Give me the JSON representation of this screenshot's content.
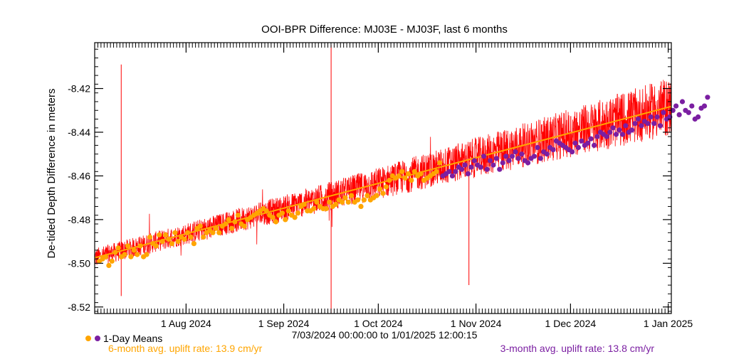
{
  "chart_data": {
    "type": "scatter",
    "title": "OOI-BPR Difference: MJ03E - MJ03F, last 6 months",
    "ylabel": "De-tided Depth Difference in meters",
    "xlabel": "",
    "x_range_label": "7/03/2024 00:00:00 to  1/01/2025 12:00:15",
    "xlim": [
      "2024-07-03",
      "2025-01-02"
    ],
    "ylim": [
      -8.523,
      -8.399
    ],
    "y_ticks": [
      -8.52,
      -8.5,
      -8.48,
      -8.46,
      -8.44,
      -8.42
    ],
    "y_tick_labels": [
      "-8.52",
      "-8.50",
      "-8.48",
      "-8.46",
      "-8.44",
      "-8.42"
    ],
    "x_ticks": [
      "2024-08-01",
      "2024-09-01",
      "2024-10-01",
      "2024-11-01",
      "2024-12-01",
      "2025-01-01"
    ],
    "x_tick_labels": [
      "1 Aug 2024",
      "1 Sep 2024",
      "1 Oct 2024",
      "1 Nov 2024",
      "1 Dec 2024",
      "1 Jan 2025"
    ],
    "grid": false,
    "legend": {
      "label": "1-Day Means",
      "placement": "bottom-left",
      "marker_colors": [
        "#ffa500",
        "#7b1fa2"
      ]
    },
    "colors": {
      "raw": "#ff0000",
      "six_month": "#ffa500",
      "three_month": "#7b1fa2",
      "fit_line": "#ffa500"
    },
    "annotations": {
      "six_month_rate": "6-month avg. uplift rate:  13.9 cm/yr",
      "three_month_rate": "3-month avg. uplift rate:  13.8 cm/yr"
    },
    "series": [
      {
        "name": "1-Day Means",
        "color": "#ffa500",
        "x_start": "2024-07-04",
        "y": [
          -8.499,
          -8.498,
          -8.497,
          -8.501,
          -8.499,
          -8.495,
          -8.493,
          -8.497,
          -8.496,
          -8.492,
          -8.497,
          -8.494,
          -8.496,
          -8.492,
          -8.497,
          -8.496,
          -8.488,
          -8.491,
          -8.492,
          -8.487,
          -8.49,
          -8.487,
          -8.489,
          -8.491,
          -8.486,
          -8.49,
          -8.488,
          -8.489,
          -8.486,
          -8.488,
          -8.491,
          -8.484,
          -8.483,
          -8.488,
          -8.486,
          -8.485,
          -8.486,
          -8.484,
          -8.486,
          -8.483,
          -8.482,
          -8.48,
          -8.484,
          -8.481,
          -8.478,
          -8.482,
          -8.483,
          -8.48,
          -8.479,
          -8.478,
          -8.477,
          -8.476,
          -8.475,
          -8.476,
          -8.478,
          -8.479,
          -8.481,
          -8.478,
          -8.477,
          -8.48,
          -8.476,
          -8.478,
          -8.479,
          -8.477,
          -8.474,
          -8.473,
          -8.476,
          -8.476,
          -8.475,
          -8.472,
          -8.474,
          -8.475,
          -8.475,
          -8.472,
          -8.474,
          -8.473,
          -8.471,
          -8.472,
          -8.47,
          -8.472,
          -8.469,
          -8.472,
          -8.471,
          -8.474,
          -8.471,
          -8.469,
          -8.471,
          -8.47,
          -8.469,
          -8.466,
          -8.468,
          -8.465,
          -8.462,
          -8.46,
          -8.461,
          -8.46,
          -8.458,
          -8.461,
          -8.459,
          -8.462,
          -8.458,
          -8.46,
          -8.459,
          -8.462,
          -8.461,
          -8.46,
          -8.459,
          -8.458,
          -8.454
        ]
      },
      {
        "name": "1-Day Means",
        "color": "#7b1fa2",
        "x_start": "2024-10-21",
        "y": [
          -8.46,
          -8.459,
          -8.458,
          -8.46,
          -8.458,
          -8.456,
          -8.457,
          -8.455,
          -8.459,
          -8.456,
          -8.453,
          -8.455,
          -8.456,
          -8.451,
          -8.457,
          -8.453,
          -8.455,
          -8.452,
          -8.457,
          -8.454,
          -8.451,
          -8.453,
          -8.451,
          -8.449,
          -8.452,
          -8.45,
          -8.453,
          -8.454,
          -8.452,
          -8.451,
          -8.447,
          -8.452,
          -8.449,
          -8.45,
          -8.447,
          -8.448,
          -8.444,
          -8.445,
          -8.446,
          -8.447,
          -8.448,
          -8.449,
          -8.445,
          -8.447,
          -8.444,
          -8.446,
          -8.445,
          -8.443,
          -8.446,
          -8.442,
          -8.44,
          -8.441,
          -8.442,
          -8.44,
          -8.438,
          -8.441,
          -8.439,
          -8.441,
          -8.437,
          -8.44,
          -8.439,
          -8.436,
          -8.434,
          -8.437,
          -8.435,
          -8.436,
          -8.433,
          -8.436,
          -8.433,
          -8.437,
          -8.431,
          -8.434,
          -8.433,
          -8.43,
          -8.428,
          -8.432,
          -8.426,
          -8.43,
          -8.431,
          -8.428,
          -8.434,
          -8.433,
          -8.429,
          -8.428,
          -8.424
        ]
      }
    ],
    "fit_line": {
      "x": [
        "2024-07-03",
        "2025-01-02"
      ],
      "y": [
        -8.4975,
        -8.4282
      ]
    }
  }
}
